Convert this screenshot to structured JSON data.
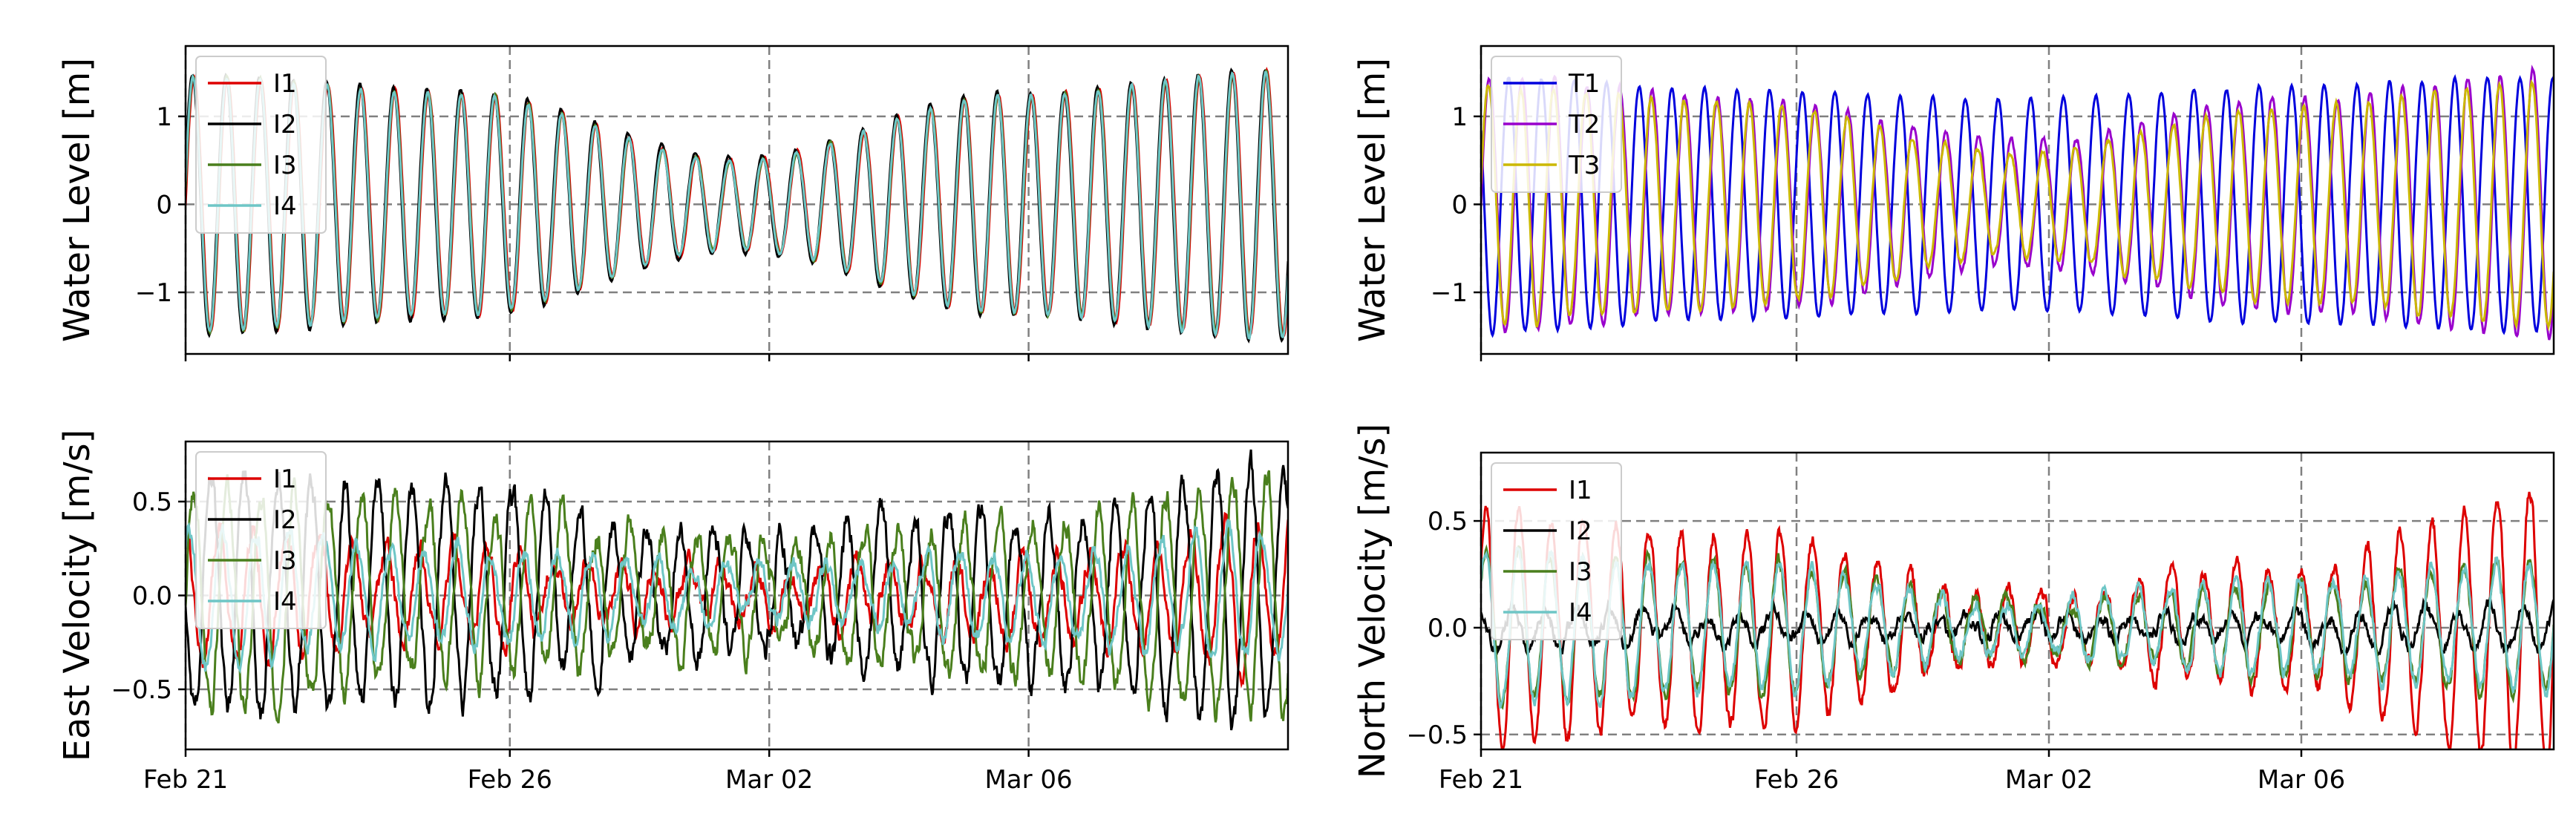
{
  "figure": {
    "background": "#ffffff",
    "date_format": "short month day"
  },
  "chart_data": [
    {
      "type": "line",
      "panel": "top-left",
      "ylabel": "Water Level [m]",
      "xlim": [
        "2021-02-21",
        "2021-03-10"
      ],
      "ylim": [
        -1.7,
        1.8
      ],
      "yticks": [
        -1,
        0,
        1
      ],
      "xticks": [
        "2021-02-21",
        "2021-02-26",
        "2021-03-02",
        "2021-03-06"
      ],
      "xtick_labels": [],
      "grid": true,
      "legend": "top-left",
      "series": [
        {
          "name": "I1",
          "color": "#dd0000",
          "amp": [
            1.45,
            1.27,
            0.52,
            1.25,
            1.52
          ],
          "period_days": 0.517,
          "phase": 0.0,
          "noise": 0.02
        },
        {
          "name": "I2",
          "color": "#000000",
          "amp": [
            1.48,
            1.3,
            0.55,
            1.28,
            1.55
          ],
          "period_days": 0.517,
          "phase": 0.05,
          "noise": 0.02
        },
        {
          "name": "I3",
          "color": "#4a7f1d",
          "amp": [
            1.45,
            1.26,
            0.5,
            1.24,
            1.5
          ],
          "period_days": 0.517,
          "phase": 0.02,
          "noise": 0.02
        },
        {
          "name": "I4",
          "color": "#6ec6c6",
          "amp": [
            1.44,
            1.25,
            0.5,
            1.24,
            1.52
          ],
          "period_days": 0.517,
          "phase": 0.03,
          "noise": 0.02
        }
      ]
    },
    {
      "type": "line",
      "panel": "top-right",
      "ylabel": "Water Level [m]",
      "xlim": [
        "2021-02-21",
        "2021-03-10"
      ],
      "ylim": [
        -1.7,
        1.8
      ],
      "yticks": [
        -1,
        0,
        1
      ],
      "xticks": [
        "2021-02-21",
        "2021-02-26",
        "2021-03-02",
        "2021-03-06"
      ],
      "xtick_labels": [],
      "grid": true,
      "legend": "top-left",
      "series": [
        {
          "name": "T1",
          "color": "#0000dd",
          "amp": [
            1.45,
            1.3,
            1.2,
            1.35,
            1.45
          ],
          "period_days": 0.517,
          "phase": 0.4,
          "noise": 0.02
        },
        {
          "name": "T2",
          "color": "#9900cc",
          "amp": [
            1.45,
            1.2,
            0.7,
            1.2,
            1.5
          ],
          "period_days": 0.517,
          "phase": 0.0,
          "noise": 0.04
        },
        {
          "name": "T3",
          "color": "#ccb800",
          "amp": [
            1.35,
            1.15,
            0.6,
            1.1,
            1.4
          ],
          "period_days": 0.517,
          "phase": 0.03,
          "noise": 0.04
        }
      ]
    },
    {
      "type": "line",
      "panel": "bottom-left",
      "ylabel": "East Velocity [m/s]",
      "xlim": [
        "2021-02-21",
        "2021-03-10"
      ],
      "ylim": [
        -0.82,
        0.82
      ],
      "yticks": [
        -0.5,
        0.0,
        0.5
      ],
      "xticks": [
        "2021-02-21",
        "2021-02-26",
        "2021-03-02",
        "2021-03-06"
      ],
      "xtick_labels": [
        "Feb 21",
        "Feb 26",
        "Mar 02",
        "Mar 06"
      ],
      "grid": true,
      "legend": "top-left",
      "series": [
        {
          "name": "I1",
          "color": "#dd0000",
          "amp": [
            0.35,
            0.25,
            0.12,
            0.2,
            0.4
          ],
          "period_days": 0.517,
          "phase": 0.25,
          "noise": 0.08
        },
        {
          "name": "I2",
          "color": "#000000",
          "amp": [
            0.65,
            0.55,
            0.3,
            0.45,
            0.7
          ],
          "period_days": 0.517,
          "phase": 0.5,
          "noise": 0.1
        },
        {
          "name": "I3",
          "color": "#4a7f1d",
          "amp": [
            0.6,
            0.45,
            0.28,
            0.4,
            0.65
          ],
          "period_days": 0.517,
          "phase": 0.0,
          "noise": 0.1
        },
        {
          "name": "I4",
          "color": "#6ec6c6",
          "amp": [
            0.35,
            0.25,
            0.15,
            0.22,
            0.35
          ],
          "period_days": 0.517,
          "phase": 0.15,
          "noise": 0.06
        }
      ]
    },
    {
      "type": "line",
      "panel": "bottom-right",
      "ylabel": "North Velocity [m/s]",
      "xlim": [
        "2021-02-21",
        "2021-03-10"
      ],
      "ylim": [
        -0.57,
        0.82
      ],
      "yticks": [
        -0.5,
        0.0,
        0.5
      ],
      "xticks": [
        "2021-02-21",
        "2021-02-26",
        "2021-03-02",
        "2021-03-06"
      ],
      "xtick_labels": [
        "Feb 21",
        "Feb 26",
        "Mar 02",
        "Mar 06"
      ],
      "grid": true,
      "legend": "top-left",
      "series": [
        {
          "name": "I1",
          "color": "#dd0000",
          "amp": [
            0.55,
            0.45,
            0.15,
            0.3,
            0.65
          ],
          "period_days": 0.517,
          "phase": 0.1,
          "noise": 0.05
        },
        {
          "name": "I2",
          "color": "#000000",
          "amp": [
            0.1,
            0.06,
            0.05,
            0.06,
            0.12
          ],
          "period_days": 0.517,
          "phase": 0.3,
          "noise": 0.04
        },
        {
          "name": "I3",
          "color": "#4a7f1d",
          "amp": [
            0.35,
            0.3,
            0.12,
            0.22,
            0.3
          ],
          "period_days": 0.517,
          "phase": 0.12,
          "noise": 0.04
        },
        {
          "name": "I4",
          "color": "#6ec6c6",
          "amp": [
            0.35,
            0.3,
            0.12,
            0.22,
            0.3
          ],
          "period_days": 0.517,
          "phase": 0.12,
          "noise": 0.04
        }
      ]
    }
  ]
}
